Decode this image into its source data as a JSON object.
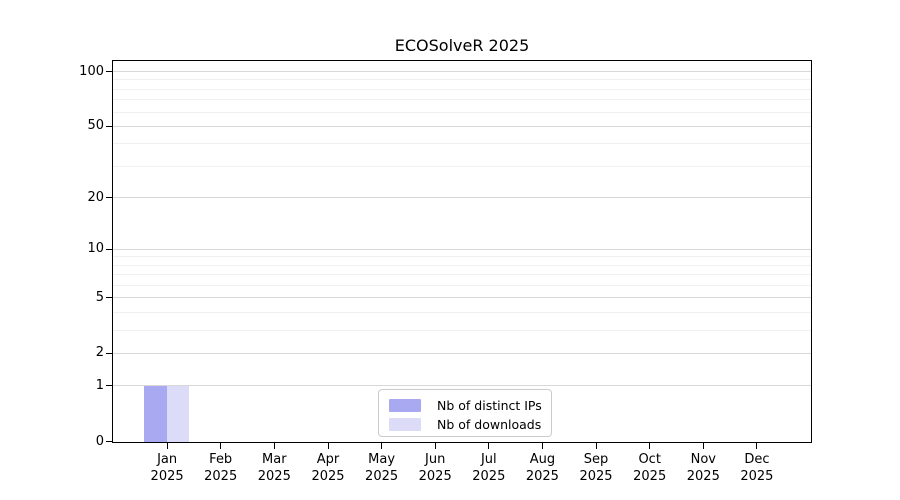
{
  "chart_data": {
    "type": "bar",
    "title": "ECOSolveR 2025",
    "x_tick_labels_line1": [
      "Jan",
      "Feb",
      "Mar",
      "Apr",
      "May",
      "Jun",
      "Jul",
      "Aug",
      "Sep",
      "Oct",
      "Nov",
      "Dec"
    ],
    "x_tick_labels_line2": "2025",
    "series": [
      {
        "name": "Nb of distinct IPs",
        "color": "#a9a9f1",
        "values": [
          1,
          0,
          0,
          0,
          0,
          0,
          0,
          0,
          0,
          0,
          0,
          0
        ]
      },
      {
        "name": "Nb of downloads",
        "color": "#dcdcf9",
        "values": [
          1,
          0,
          0,
          0,
          0,
          0,
          0,
          0,
          0,
          0,
          0,
          0
        ]
      }
    ],
    "yscale": "log1p",
    "ylim": [
      0,
      113.5
    ],
    "y_major_ticks": [
      0,
      1,
      2,
      5,
      10,
      20,
      50,
      100
    ],
    "y_minor_ticks": [
      3,
      4,
      6,
      7,
      8,
      9,
      30,
      40,
      60,
      70,
      80,
      90
    ],
    "grid": "horizontal",
    "legend_position": "lower center inside"
  },
  "colors": {
    "bar_distinct_ips": "#a9a9f1",
    "bar_downloads": "#dcdcf9",
    "major_gridline": "#d8d8d8",
    "minor_gridline": "#f0f0f0",
    "axis_spine": "#000000",
    "legend_border": "#cccccc",
    "background": "#ffffff",
    "text": "#000000"
  }
}
